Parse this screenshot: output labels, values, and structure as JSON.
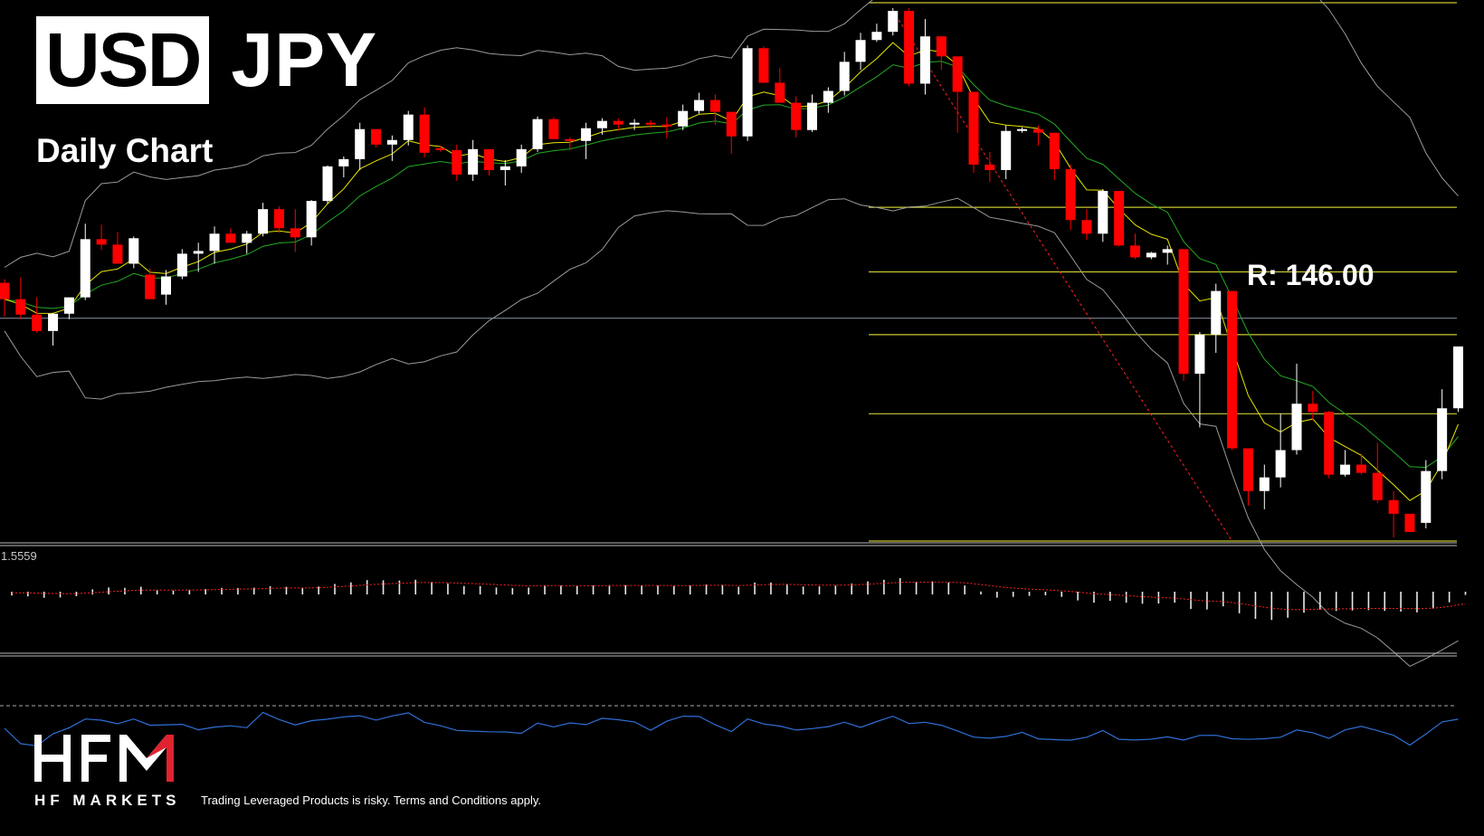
{
  "header": {
    "base_currency": "USD",
    "quote_currency": "JPY",
    "timeframe": "Daily Chart",
    "resistance_label": "R: 146.00"
  },
  "footer": {
    "brand_letters": "HFM",
    "brand_name": "HF MARKETS",
    "disclaimer": "Trading Leveraged Products is risky. Terms and Conditions apply."
  },
  "oscillator": {
    "readout": "1.5559"
  },
  "colors": {
    "background": "#000000",
    "bull_candle": "#ffffff",
    "bear_candle": "#ff0000",
    "fibonacci_levels": "#c8c832",
    "fast_ma": "#e6e600",
    "slow_ma": "#22aa22",
    "bollinger_bands": "#9a9a9a",
    "signal_line": "#ff2020",
    "rsi_line": "#2f6fd6",
    "logo_red": "#e0232f"
  },
  "chart_data": {
    "type": "candlestick",
    "title": "USD JPY",
    "subtitle": "Daily Chart",
    "xlabel": "",
    "ylabel": "",
    "ylim": [
      145.55,
      151.5
    ],
    "grid": false,
    "price_candles": [
      [
        148.39,
        148.43,
        148.02,
        148.21
      ],
      [
        148.21,
        148.45,
        147.99,
        148.04
      ],
      [
        148.04,
        148.23,
        147.84,
        147.86
      ],
      [
        147.86,
        148.06,
        147.7,
        148.05
      ],
      [
        148.05,
        148.15,
        147.99,
        148.23
      ],
      [
        148.23,
        149.04,
        148.2,
        148.87
      ],
      [
        148.87,
        149.03,
        148.75,
        148.81
      ],
      [
        148.81,
        148.95,
        148.6,
        148.6
      ],
      [
        148.6,
        148.9,
        148.55,
        148.88
      ],
      [
        148.48,
        148.55,
        148.21,
        148.21
      ],
      [
        148.26,
        148.53,
        148.15,
        148.46
      ],
      [
        148.46,
        148.76,
        148.43,
        148.71
      ],
      [
        148.71,
        148.83,
        148.51,
        148.74
      ],
      [
        148.74,
        149.01,
        148.6,
        148.93
      ],
      [
        148.93,
        148.99,
        148.9,
        148.83
      ],
      [
        148.83,
        148.96,
        148.71,
        148.93
      ],
      [
        148.93,
        149.27,
        148.9,
        149.2
      ],
      [
        149.2,
        149.23,
        148.94,
        148.99
      ],
      [
        148.99,
        149.2,
        148.73,
        148.89
      ],
      [
        148.89,
        149.3,
        148.8,
        149.29
      ],
      [
        149.29,
        149.68,
        149.26,
        149.67
      ],
      [
        149.67,
        149.78,
        149.55,
        149.75
      ],
      [
        149.75,
        150.15,
        149.63,
        150.08
      ],
      [
        150.08,
        150.08,
        149.88,
        149.91
      ],
      [
        149.91,
        150.01,
        149.73,
        149.96
      ],
      [
        149.96,
        150.28,
        149.9,
        150.24
      ],
      [
        150.24,
        150.32,
        149.77,
        149.82
      ],
      [
        149.87,
        149.9,
        149.83,
        149.85
      ],
      [
        149.85,
        149.91,
        149.51,
        149.58
      ],
      [
        149.58,
        149.96,
        149.51,
        149.86
      ],
      [
        149.86,
        149.86,
        149.57,
        149.63
      ],
      [
        149.63,
        149.74,
        149.46,
        149.67
      ],
      [
        149.67,
        149.91,
        149.6,
        149.86
      ],
      [
        149.86,
        150.22,
        149.83,
        150.19
      ],
      [
        150.19,
        150.21,
        149.97,
        149.97
      ],
      [
        149.97,
        149.99,
        149.85,
        149.95
      ],
      [
        149.95,
        150.15,
        149.75,
        150.09
      ],
      [
        150.09,
        150.2,
        150.02,
        150.17
      ],
      [
        150.17,
        150.2,
        150.07,
        150.13
      ],
      [
        150.13,
        150.19,
        150.07,
        150.15
      ],
      [
        150.15,
        150.18,
        150.09,
        150.13
      ],
      [
        150.13,
        150.21,
        149.98,
        150.11
      ],
      [
        150.11,
        150.35,
        150.07,
        150.28
      ],
      [
        150.28,
        150.48,
        150.25,
        150.4
      ],
      [
        150.4,
        150.46,
        150.13,
        150.27
      ],
      [
        150.27,
        150.27,
        149.81,
        150.0
      ],
      [
        150.0,
        151.0,
        149.95,
        150.97
      ],
      [
        150.97,
        150.99,
        150.59,
        150.59
      ],
      [
        150.59,
        150.75,
        150.38,
        150.37
      ],
      [
        150.37,
        150.44,
        149.99,
        150.07
      ],
      [
        150.07,
        150.46,
        150.05,
        150.37
      ],
      [
        150.37,
        150.54,
        150.26,
        150.5
      ],
      [
        150.5,
        150.93,
        150.45,
        150.82
      ],
      [
        150.82,
        151.14,
        150.73,
        151.06
      ],
      [
        151.06,
        151.24,
        151.04,
        151.15
      ],
      [
        151.15,
        151.41,
        151.11,
        151.38
      ],
      [
        151.38,
        151.41,
        150.55,
        150.58
      ],
      [
        150.58,
        151.29,
        150.46,
        151.1
      ],
      [
        151.1,
        151.1,
        150.73,
        150.88
      ],
      [
        150.88,
        150.78,
        150.04,
        150.49
      ],
      [
        150.49,
        150.11,
        149.6,
        149.69
      ],
      [
        149.69,
        149.83,
        149.5,
        149.63
      ],
      [
        149.63,
        150.12,
        149.53,
        150.06
      ],
      [
        150.06,
        150.1,
        150.04,
        150.08
      ],
      [
        150.08,
        150.12,
        149.9,
        150.04
      ],
      [
        150.04,
        150.04,
        149.52,
        149.64
      ],
      [
        149.64,
        149.69,
        148.97,
        149.08
      ],
      [
        149.08,
        149.2,
        148.86,
        148.93
      ],
      [
        148.93,
        149.42,
        148.84,
        149.4
      ],
      [
        149.4,
        149.38,
        148.79,
        148.8
      ],
      [
        148.8,
        148.93,
        148.65,
        148.67
      ],
      [
        148.67,
        148.73,
        148.65,
        148.72
      ],
      [
        148.72,
        148.8,
        148.59,
        148.76
      ],
      [
        148.76,
        148.72,
        147.31,
        147.39
      ],
      [
        147.39,
        147.85,
        146.8,
        147.82
      ],
      [
        147.82,
        148.38,
        147.62,
        148.3
      ],
      [
        148.3,
        148.3,
        146.55,
        146.57
      ],
      [
        146.57,
        146.57,
        145.94,
        146.1
      ],
      [
        146.1,
        146.39,
        145.9,
        146.25
      ],
      [
        146.25,
        146.95,
        146.14,
        146.55
      ],
      [
        146.55,
        147.5,
        146.5,
        147.06
      ],
      [
        147.06,
        147.2,
        146.88,
        146.97
      ],
      [
        146.97,
        146.98,
        146.24,
        146.28
      ],
      [
        146.28,
        146.55,
        146.26,
        146.39
      ],
      [
        146.39,
        146.51,
        146.28,
        146.3
      ],
      [
        146.3,
        146.63,
        145.97,
        146.0
      ],
      [
        146.0,
        146.1,
        145.59,
        145.85
      ],
      [
        145.85,
        145.81,
        145.72,
        145.65
      ],
      [
        145.75,
        146.44,
        145.69,
        146.32
      ],
      [
        146.32,
        147.22,
        146.23,
        147.01
      ],
      [
        147.01,
        147.42,
        146.97,
        147.69
      ]
    ],
    "fibonacci_levels": [
      151.47,
      149.22,
      148.51,
      147.82,
      146.95,
      145.55
    ],
    "horizontal_line": 148.0,
    "oscillator": {
      "readout": 1.5559
    }
  }
}
